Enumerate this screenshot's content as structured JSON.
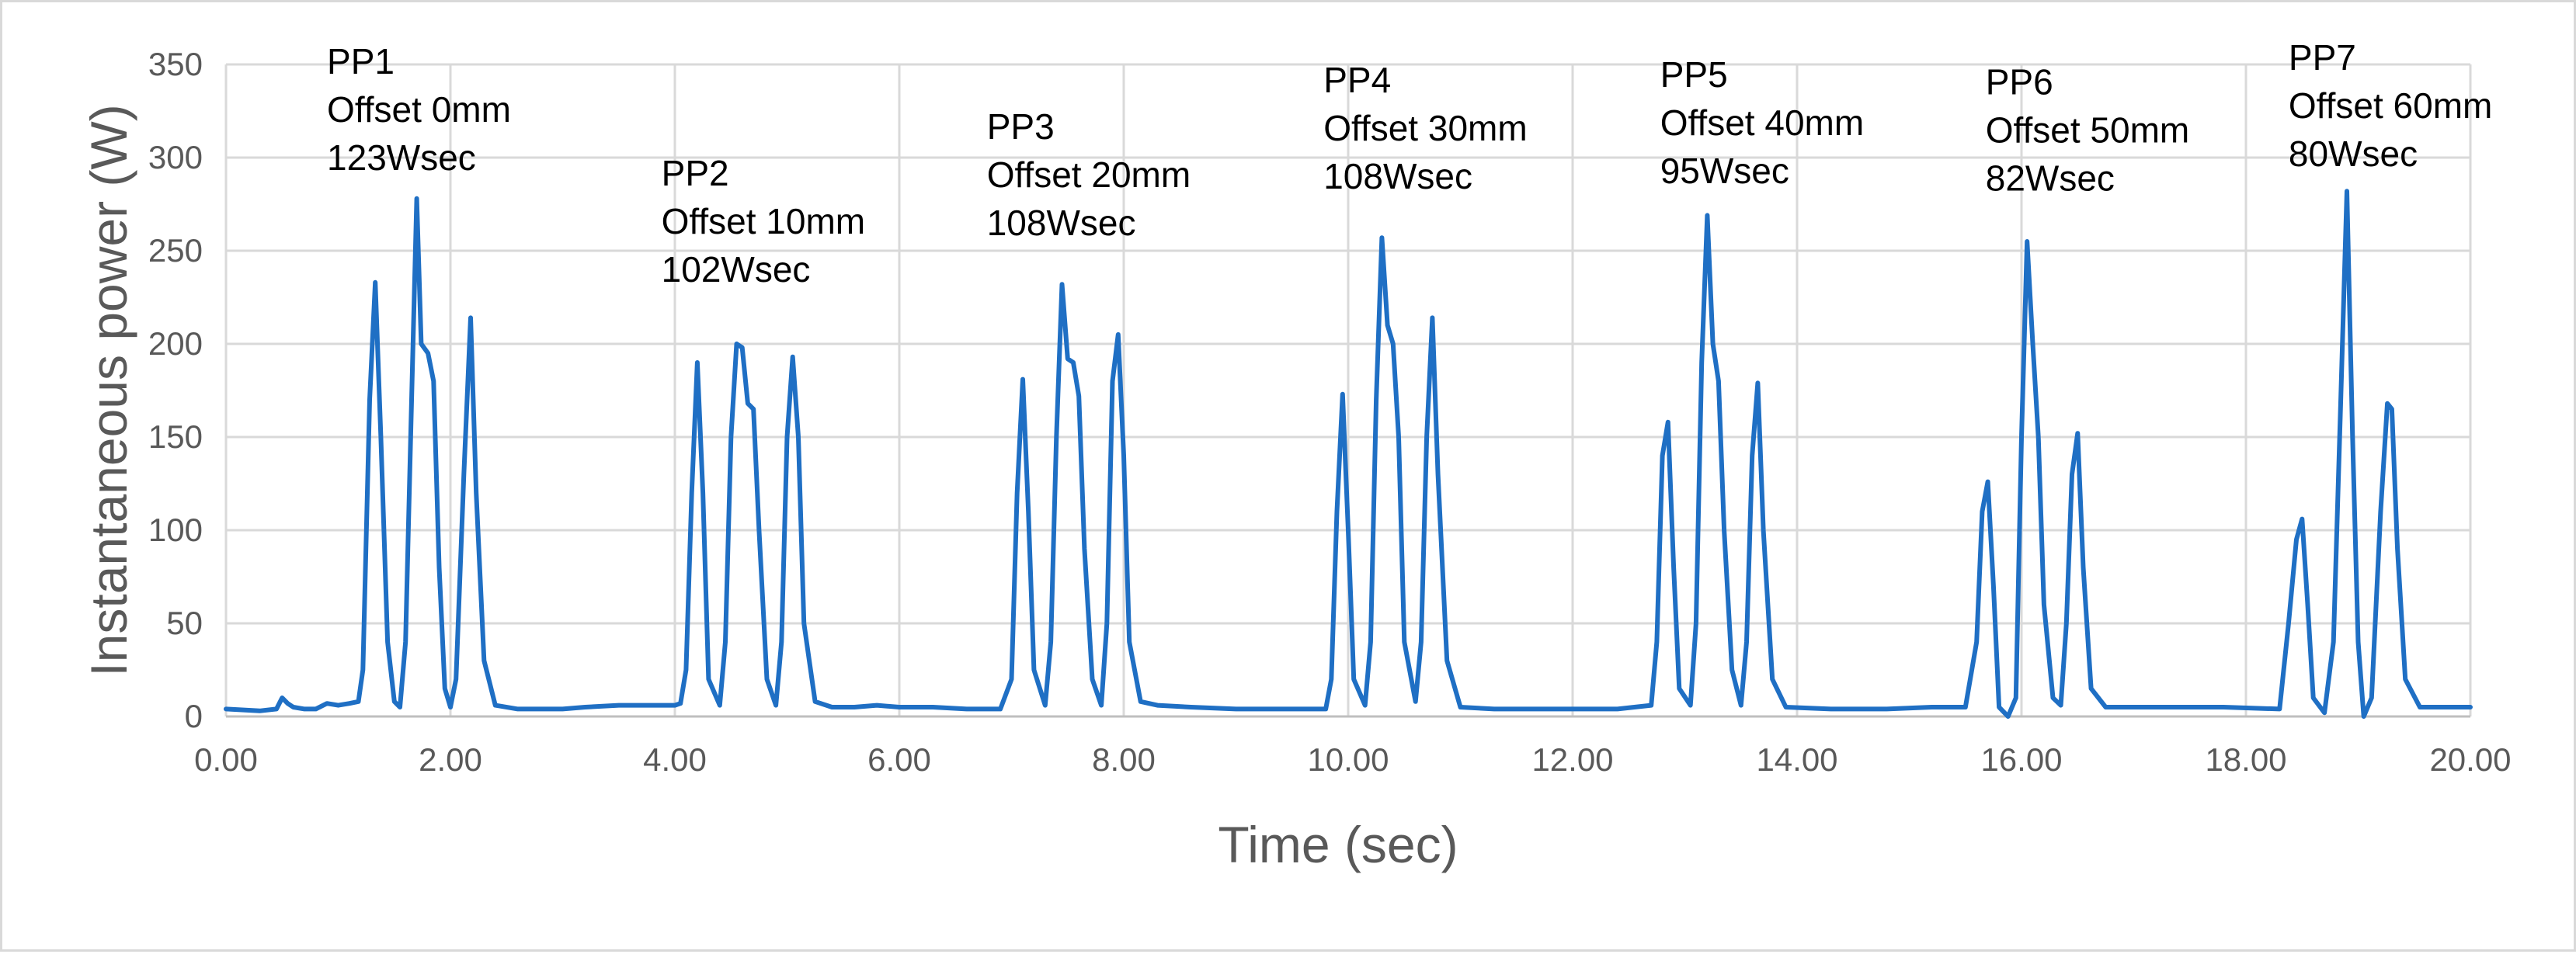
{
  "chart_data": {
    "type": "line",
    "title": "",
    "xlabel": "Time (sec)",
    "ylabel": "Instantaneous power (W)",
    "xlim": [
      0,
      20
    ],
    "ylim": [
      0,
      350
    ],
    "x_ticks": [
      "0.00",
      "2.00",
      "4.00",
      "6.00",
      "8.00",
      "10.00",
      "12.00",
      "14.00",
      "16.00",
      "18.00",
      "20.00"
    ],
    "y_ticks": [
      "0",
      "50",
      "100",
      "150",
      "200",
      "250",
      "300",
      "350"
    ],
    "grid": true,
    "legend": "none",
    "colors": {
      "series": "#1f6fc4",
      "grid": "#d9d9d9",
      "text": "#595959"
    },
    "series": [
      {
        "name": "",
        "points": [
          [
            0,
            4
          ],
          [
            0.3,
            3
          ],
          [
            0.45,
            4
          ],
          [
            0.5,
            10
          ],
          [
            0.55,
            7
          ],
          [
            0.6,
            5
          ],
          [
            0.7,
            4
          ],
          [
            0.8,
            4
          ],
          [
            0.9,
            7
          ],
          [
            1.0,
            6
          ],
          [
            1.1,
            7
          ],
          [
            1.18,
            8
          ],
          [
            1.22,
            25
          ],
          [
            1.28,
            170
          ],
          [
            1.33,
            233
          ],
          [
            1.38,
            150
          ],
          [
            1.44,
            40
          ],
          [
            1.5,
            8
          ],
          [
            1.55,
            5
          ],
          [
            1.6,
            40
          ],
          [
            1.65,
            160
          ],
          [
            1.7,
            278
          ],
          [
            1.74,
            200
          ],
          [
            1.8,
            195
          ],
          [
            1.85,
            180
          ],
          [
            1.9,
            80
          ],
          [
            1.95,
            15
          ],
          [
            2.0,
            5
          ],
          [
            2.05,
            20
          ],
          [
            2.12,
            130
          ],
          [
            2.18,
            214
          ],
          [
            2.23,
            120
          ],
          [
            2.3,
            30
          ],
          [
            2.4,
            6
          ],
          [
            2.6,
            4
          ],
          [
            2.8,
            4
          ],
          [
            3.0,
            4
          ],
          [
            3.2,
            5
          ],
          [
            3.5,
            6
          ],
          [
            3.8,
            6
          ],
          [
            4.0,
            6
          ],
          [
            4.05,
            7
          ],
          [
            4.1,
            25
          ],
          [
            4.15,
            120
          ],
          [
            4.2,
            190
          ],
          [
            4.25,
            120
          ],
          [
            4.3,
            20
          ],
          [
            4.4,
            6
          ],
          [
            4.45,
            40
          ],
          [
            4.5,
            150
          ],
          [
            4.55,
            200
          ],
          [
            4.6,
            198
          ],
          [
            4.65,
            168
          ],
          [
            4.7,
            165
          ],
          [
            4.75,
            100
          ],
          [
            4.82,
            20
          ],
          [
            4.9,
            6
          ],
          [
            4.95,
            40
          ],
          [
            5.0,
            150
          ],
          [
            5.05,
            193
          ],
          [
            5.1,
            150
          ],
          [
            5.15,
            50
          ],
          [
            5.25,
            8
          ],
          [
            5.4,
            5
          ],
          [
            5.6,
            5
          ],
          [
            5.8,
            6
          ],
          [
            6.0,
            5
          ],
          [
            6.3,
            5
          ],
          [
            6.6,
            4
          ],
          [
            6.9,
            4
          ],
          [
            7.0,
            20
          ],
          [
            7.05,
            120
          ],
          [
            7.1,
            181
          ],
          [
            7.15,
            110
          ],
          [
            7.2,
            25
          ],
          [
            7.3,
            6
          ],
          [
            7.35,
            40
          ],
          [
            7.4,
            150
          ],
          [
            7.45,
            232
          ],
          [
            7.5,
            192
          ],
          [
            7.55,
            190
          ],
          [
            7.6,
            172
          ],
          [
            7.65,
            90
          ],
          [
            7.72,
            20
          ],
          [
            7.8,
            6
          ],
          [
            7.85,
            50
          ],
          [
            7.9,
            180
          ],
          [
            7.95,
            205
          ],
          [
            8.0,
            140
          ],
          [
            8.05,
            40
          ],
          [
            8.15,
            8
          ],
          [
            8.3,
            6
          ],
          [
            8.6,
            5
          ],
          [
            9.0,
            4
          ],
          [
            9.4,
            4
          ],
          [
            9.8,
            4
          ],
          [
            9.85,
            20
          ],
          [
            9.9,
            110
          ],
          [
            9.95,
            173
          ],
          [
            10.0,
            100
          ],
          [
            10.05,
            20
          ],
          [
            10.15,
            6
          ],
          [
            10.2,
            40
          ],
          [
            10.25,
            170
          ],
          [
            10.3,
            257
          ],
          [
            10.35,
            210
          ],
          [
            10.4,
            200
          ],
          [
            10.45,
            150
          ],
          [
            10.5,
            40
          ],
          [
            10.6,
            8
          ],
          [
            10.65,
            40
          ],
          [
            10.7,
            150
          ],
          [
            10.75,
            214
          ],
          [
            10.8,
            130
          ],
          [
            10.88,
            30
          ],
          [
            11.0,
            5
          ],
          [
            11.3,
            4
          ],
          [
            11.8,
            4
          ],
          [
            12.4,
            4
          ],
          [
            12.7,
            6
          ],
          [
            12.75,
            40
          ],
          [
            12.8,
            140
          ],
          [
            12.85,
            158
          ],
          [
            12.9,
            80
          ],
          [
            12.95,
            15
          ],
          [
            13.05,
            6
          ],
          [
            13.1,
            50
          ],
          [
            13.15,
            190
          ],
          [
            13.2,
            269
          ],
          [
            13.25,
            200
          ],
          [
            13.3,
            180
          ],
          [
            13.35,
            100
          ],
          [
            13.42,
            25
          ],
          [
            13.5,
            6
          ],
          [
            13.55,
            40
          ],
          [
            13.6,
            140
          ],
          [
            13.65,
            179
          ],
          [
            13.7,
            100
          ],
          [
            13.78,
            20
          ],
          [
            13.9,
            5
          ],
          [
            14.3,
            4
          ],
          [
            14.8,
            4
          ],
          [
            15.2,
            5
          ],
          [
            15.5,
            5
          ],
          [
            15.6,
            40
          ],
          [
            15.65,
            110
          ],
          [
            15.7,
            126
          ],
          [
            15.75,
            70
          ],
          [
            15.8,
            5
          ],
          [
            15.88,
            0
          ],
          [
            15.95,
            10
          ],
          [
            16.0,
            150
          ],
          [
            16.05,
            255
          ],
          [
            16.1,
            200
          ],
          [
            16.15,
            150
          ],
          [
            16.2,
            60
          ],
          [
            16.28,
            10
          ],
          [
            16.35,
            6
          ],
          [
            16.4,
            50
          ],
          [
            16.45,
            130
          ],
          [
            16.5,
            152
          ],
          [
            16.55,
            80
          ],
          [
            16.62,
            15
          ],
          [
            16.75,
            5
          ],
          [
            17.2,
            5
          ],
          [
            17.8,
            5
          ],
          [
            18.3,
            4
          ],
          [
            18.38,
            50
          ],
          [
            18.45,
            95
          ],
          [
            18.5,
            106
          ],
          [
            18.55,
            60
          ],
          [
            18.6,
            10
          ],
          [
            18.7,
            2
          ],
          [
            18.78,
            40
          ],
          [
            18.84,
            160
          ],
          [
            18.9,
            282
          ],
          [
            18.95,
            150
          ],
          [
            19.0,
            40
          ],
          [
            19.05,
            0
          ],
          [
            19.12,
            10
          ],
          [
            19.2,
            110
          ],
          [
            19.26,
            168
          ],
          [
            19.3,
            165
          ],
          [
            19.35,
            90
          ],
          [
            19.42,
            20
          ],
          [
            19.55,
            5
          ],
          [
            19.8,
            5
          ],
          [
            20.0,
            5
          ]
        ]
      }
    ],
    "annotations": [
      {
        "x": 0.9,
        "y_top": 350,
        "lines": [
          "PP1",
          "Offset 0mm",
          "123Wsec"
        ]
      },
      {
        "x": 3.88,
        "y_top": 290,
        "lines": [
          "PP2",
          "Offset 10mm",
          "102Wsec"
        ]
      },
      {
        "x": 6.78,
        "y_top": 315,
        "lines": [
          "PP3",
          "Offset 20mm",
          "108Wsec"
        ]
      },
      {
        "x": 9.78,
        "y_top": 340,
        "lines": [
          "PP4",
          "Offset 30mm",
          "108Wsec"
        ]
      },
      {
        "x": 12.78,
        "y_top": 343,
        "lines": [
          "PP5",
          "Offset 40mm",
          "95Wsec"
        ]
      },
      {
        "x": 15.68,
        "y_top": 339,
        "lines": [
          "PP6",
          "Offset 50mm",
          "82Wsec"
        ]
      },
      {
        "x": 18.38,
        "y_top": 352,
        "lines": [
          "PP7",
          "Offset 60mm",
          "80Wsec"
        ]
      }
    ]
  }
}
